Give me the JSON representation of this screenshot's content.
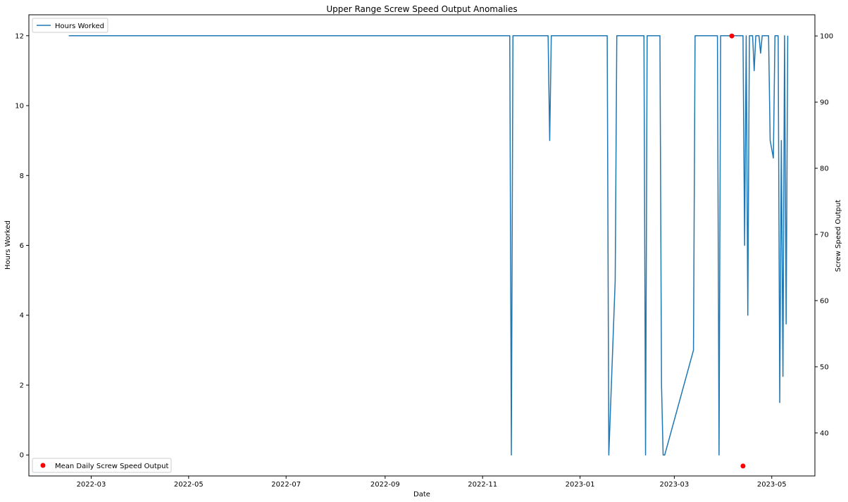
{
  "chart_data": {
    "type": "line",
    "title": "Upper Range Screw Speed Output Anomalies",
    "xlabel": "Date",
    "ylabel": "Hours Worked",
    "y2label": "Screw Speed Output",
    "xlim": [
      "2022-01-21",
      "2023-05-28"
    ],
    "ylim": [
      -0.6,
      12.6
    ],
    "y2lim": [
      33.5,
      103.2
    ],
    "x_ticks": [
      "2022-03",
      "2022-05",
      "2022-07",
      "2022-09",
      "2022-11",
      "2023-01",
      "2023-03",
      "2023-05"
    ],
    "y_ticks": [
      0,
      2,
      4,
      6,
      8,
      10,
      12
    ],
    "y2_ticks": [
      40,
      50,
      60,
      70,
      80,
      90,
      100
    ],
    "grid": false,
    "legend": [
      {
        "name": "Hours Worked",
        "placement": "upper-left"
      },
      {
        "name": "Mean Daily Screw Speed Output",
        "placement": "lower-left"
      }
    ],
    "series": [
      {
        "name": "Hours Worked",
        "axis": "left",
        "kind": "line",
        "color": "#1f77b4",
        "points": [
          [
            "2022-02-15",
            12
          ],
          [
            "2022-11-18",
            12
          ],
          [
            "2022-11-19",
            0
          ],
          [
            "2022-11-20",
            12
          ],
          [
            "2022-12-12",
            12
          ],
          [
            "2022-12-13",
            9
          ],
          [
            "2022-12-14",
            12
          ],
          [
            "2023-01-18",
            12
          ],
          [
            "2023-01-19",
            0
          ],
          [
            "2023-01-23",
            5
          ],
          [
            "2023-01-24",
            12
          ],
          [
            "2023-02-10",
            12
          ],
          [
            "2023-02-11",
            0
          ],
          [
            "2023-02-12",
            12
          ],
          [
            "2023-02-20",
            12
          ],
          [
            "2023-02-21",
            2
          ],
          [
            "2023-02-22",
            0
          ],
          [
            "2023-02-23",
            0
          ],
          [
            "2023-03-13",
            3
          ],
          [
            "2023-03-14",
            12
          ],
          [
            "2023-03-28",
            12
          ],
          [
            "2023-03-29",
            0
          ],
          [
            "2023-03-30",
            12
          ],
          [
            "2023-04-13",
            12
          ],
          [
            "2023-04-14",
            6
          ],
          [
            "2023-04-15",
            12
          ],
          [
            "2023-04-16",
            4
          ],
          [
            "2023-04-17",
            12
          ],
          [
            "2023-04-19",
            12
          ],
          [
            "2023-04-20",
            11
          ],
          [
            "2023-04-21",
            12
          ],
          [
            "2023-04-23",
            12
          ],
          [
            "2023-04-24",
            11.5
          ],
          [
            "2023-04-25",
            12
          ],
          [
            "2023-04-29",
            12
          ],
          [
            "2023-04-30",
            9
          ],
          [
            "2023-05-02",
            8.5
          ],
          [
            "2023-05-03",
            12
          ],
          [
            "2023-05-05",
            12
          ],
          [
            "2023-05-06",
            1.5
          ],
          [
            "2023-05-07",
            9
          ],
          [
            "2023-05-08",
            2.25
          ],
          [
            "2023-05-09",
            12
          ],
          [
            "2023-05-10",
            3.75
          ],
          [
            "2023-05-11",
            12
          ]
        ]
      },
      {
        "name": "Mean Daily Screw Speed Output",
        "axis": "right",
        "kind": "scatter",
        "color": "#ff0000",
        "points": [
          [
            "2023-04-06",
            100
          ],
          [
            "2023-04-13",
            35
          ]
        ]
      }
    ]
  }
}
